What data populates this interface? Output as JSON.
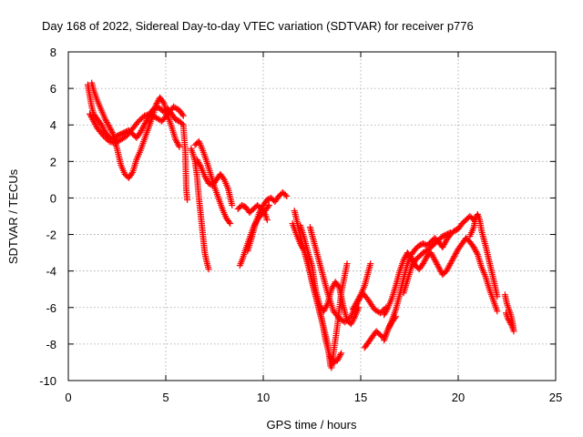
{
  "chart_data": {
    "type": "scatter",
    "title": "Day 168 of 2022, Sidereal Day-to-day VTEC variation (SDTVAR) for receiver p776",
    "xlabel": "GPS time / hours",
    "ylabel": "SDTVAR / TECUs",
    "xlim": [
      0,
      25
    ],
    "ylim": [
      -10,
      8
    ],
    "xticks": [
      0,
      5,
      10,
      15,
      20,
      25
    ],
    "yticks": [
      -10,
      -8,
      -6,
      -4,
      -2,
      0,
      2,
      4,
      6,
      8
    ],
    "grid": true,
    "marker": "+",
    "color": "#ff0000",
    "series": [
      {
        "points": [
          [
            1.0,
            6.2
          ],
          [
            1.1,
            5.6
          ],
          [
            1.2,
            5.0
          ],
          [
            1.3,
            4.6
          ],
          [
            1.5,
            4.3
          ],
          [
            1.7,
            4.0
          ],
          [
            1.9,
            3.6
          ],
          [
            2.1,
            3.3
          ],
          [
            2.3,
            3.2
          ],
          [
            2.5,
            3.4
          ],
          [
            2.7,
            3.5
          ],
          [
            2.9,
            3.6
          ],
          [
            3.1,
            3.7
          ],
          [
            3.3,
            3.5
          ],
          [
            3.5,
            3.3
          ],
          [
            3.7,
            3.6
          ],
          [
            3.9,
            4.0
          ],
          [
            4.1,
            4.4
          ],
          [
            4.3,
            4.8
          ],
          [
            4.5,
            5.0
          ],
          [
            4.7,
            4.9
          ],
          [
            4.9,
            4.7
          ],
          [
            5.1,
            4.9
          ],
          [
            5.3,
            4.6
          ],
          [
            5.5,
            4.3
          ],
          [
            5.7,
            4.2
          ],
          [
            5.9,
            4.0
          ],
          [
            6.0,
            2.5
          ],
          [
            6.05,
            0.5
          ],
          [
            6.1,
            -0.1
          ]
        ]
      },
      {
        "points": [
          [
            1.2,
            6.3
          ],
          [
            1.3,
            5.9
          ],
          [
            1.5,
            5.3
          ],
          [
            1.7,
            4.8
          ],
          [
            1.9,
            4.3
          ],
          [
            2.1,
            3.9
          ],
          [
            2.3,
            3.5
          ],
          [
            2.5,
            2.7
          ],
          [
            2.7,
            1.8
          ],
          [
            2.9,
            1.3
          ],
          [
            3.1,
            1.1
          ],
          [
            3.3,
            1.4
          ],
          [
            3.5,
            2.1
          ],
          [
            3.7,
            2.6
          ],
          [
            3.9,
            3.2
          ],
          [
            4.1,
            3.8
          ],
          [
            4.3,
            4.4
          ],
          [
            4.5,
            5.1
          ],
          [
            4.7,
            5.5
          ],
          [
            4.9,
            5.2
          ],
          [
            5.1,
            4.5
          ],
          [
            5.3,
            3.9
          ],
          [
            5.5,
            3.2
          ],
          [
            5.7,
            2.8
          ]
        ]
      },
      {
        "points": [
          [
            1.1,
            4.6
          ],
          [
            1.3,
            4.2
          ],
          [
            1.5,
            3.8
          ],
          [
            1.8,
            3.4
          ],
          [
            2.1,
            3.1
          ],
          [
            2.4,
            3.0
          ],
          [
            2.7,
            3.2
          ],
          [
            3.0,
            3.4
          ],
          [
            3.3,
            3.8
          ],
          [
            3.6,
            4.2
          ],
          [
            3.9,
            4.5
          ],
          [
            4.2,
            4.6
          ],
          [
            4.5,
            4.4
          ],
          [
            4.8,
            4.2
          ],
          [
            5.1,
            4.6
          ],
          [
            5.4,
            5.0
          ],
          [
            5.7,
            4.8
          ],
          [
            5.9,
            4.5
          ]
        ]
      },
      {
        "points": [
          [
            6.3,
            2.7
          ],
          [
            6.4,
            2.4
          ],
          [
            6.5,
            2.0
          ],
          [
            6.6,
            1.2
          ],
          [
            6.7,
            0.0
          ],
          [
            6.8,
            -1.0
          ],
          [
            6.9,
            -2.0
          ],
          [
            7.0,
            -3.0
          ],
          [
            7.1,
            -3.5
          ],
          [
            7.2,
            -3.9
          ]
        ]
      },
      {
        "points": [
          [
            6.5,
            2.9
          ],
          [
            6.7,
            3.1
          ],
          [
            6.9,
            2.6
          ],
          [
            7.1,
            2.0
          ],
          [
            7.3,
            1.3
          ],
          [
            7.5,
            0.6
          ],
          [
            7.7,
            0.0
          ],
          [
            7.9,
            -0.6
          ],
          [
            8.1,
            -1.1
          ],
          [
            8.3,
            -1.4
          ]
        ]
      },
      {
        "points": [
          [
            6.6,
            2.1
          ],
          [
            6.8,
            1.7
          ],
          [
            7.0,
            1.2
          ],
          [
            7.2,
            0.8
          ],
          [
            7.4,
            0.7
          ],
          [
            7.6,
            1.0
          ],
          [
            7.8,
            1.3
          ],
          [
            8.0,
            1.0
          ],
          [
            8.2,
            0.5
          ],
          [
            8.4,
            -0.4
          ]
        ]
      },
      {
        "points": [
          [
            8.8,
            -3.7
          ],
          [
            8.95,
            -3.3
          ],
          [
            9.1,
            -2.8
          ],
          [
            9.3,
            -2.2
          ],
          [
            9.5,
            -1.6
          ],
          [
            9.7,
            -1.2
          ],
          [
            9.9,
            -0.9
          ],
          [
            10.1,
            -0.7
          ],
          [
            10.3,
            -0.4
          ]
        ]
      },
      {
        "points": [
          [
            8.7,
            -0.6
          ],
          [
            8.9,
            -0.4
          ],
          [
            9.1,
            -0.5
          ],
          [
            9.3,
            -0.8
          ],
          [
            9.5,
            -0.6
          ],
          [
            9.7,
            -0.4
          ],
          [
            9.9,
            -0.6
          ],
          [
            10.1,
            -0.9
          ],
          [
            10.2,
            -1.2
          ]
        ]
      },
      {
        "points": [
          [
            9.2,
            -2.9
          ],
          [
            9.4,
            -2.2
          ],
          [
            9.6,
            -1.4
          ],
          [
            9.8,
            -0.8
          ],
          [
            10.0,
            -0.4
          ],
          [
            10.2,
            -0.1
          ],
          [
            10.4,
            0.0
          ],
          [
            10.6,
            -0.2
          ],
          [
            10.8,
            0.1
          ],
          [
            11.0,
            0.3
          ],
          [
            11.2,
            0.1
          ]
        ]
      },
      {
        "points": [
          [
            11.6,
            -0.7
          ],
          [
            11.8,
            -1.6
          ],
          [
            12.0,
            -2.5
          ],
          [
            12.2,
            -3.3
          ],
          [
            12.4,
            -4.1
          ],
          [
            12.6,
            -5.0
          ],
          [
            12.8,
            -5.8
          ],
          [
            13.0,
            -6.6
          ],
          [
            13.2,
            -7.8
          ],
          [
            13.4,
            -8.6
          ],
          [
            13.6,
            -9.0
          ],
          [
            13.8,
            -8.9
          ],
          [
            14.0,
            -8.5
          ]
        ]
      },
      {
        "points": [
          [
            11.5,
            -1.4
          ],
          [
            11.7,
            -2.0
          ],
          [
            11.9,
            -2.5
          ],
          [
            12.1,
            -2.9
          ],
          [
            12.3,
            -3.5
          ],
          [
            12.5,
            -4.6
          ],
          [
            12.7,
            -5.4
          ],
          [
            12.9,
            -6.3
          ],
          [
            13.1,
            -7.1
          ],
          [
            13.3,
            -8.0
          ],
          [
            13.45,
            -9.2
          ]
        ]
      },
      {
        "points": [
          [
            11.9,
            -1.5
          ],
          [
            12.1,
            -2.2
          ],
          [
            12.3,
            -3.0
          ],
          [
            12.5,
            -3.7
          ],
          [
            12.6,
            -4.4
          ],
          [
            12.7,
            -5.1
          ],
          [
            12.9,
            -5.9
          ],
          [
            13.1,
            -6.2
          ],
          [
            13.3,
            -5.8
          ],
          [
            13.5,
            -5.0
          ],
          [
            13.7,
            -4.6
          ],
          [
            13.9,
            -4.9
          ],
          [
            14.1,
            -5.9
          ],
          [
            14.3,
            -6.7
          ],
          [
            14.5,
            -6.9
          ],
          [
            14.7,
            -6.5
          ],
          [
            14.9,
            -6.0
          ]
        ]
      },
      {
        "points": [
          [
            12.4,
            -1.6
          ],
          [
            12.7,
            -2.8
          ],
          [
            13.0,
            -4.0
          ],
          [
            13.3,
            -5.2
          ],
          [
            13.6,
            -6.2
          ],
          [
            13.9,
            -6.6
          ],
          [
            14.2,
            -6.8
          ],
          [
            14.5,
            -6.5
          ],
          [
            14.8,
            -5.8
          ],
          [
            15.1,
            -5.2
          ],
          [
            15.4,
            -5.6
          ],
          [
            15.7,
            -6.1
          ],
          [
            16.0,
            -6.3
          ],
          [
            16.3,
            -6.0
          ]
        ]
      },
      {
        "points": [
          [
            14.3,
            -3.6
          ],
          [
            14.0,
            -5.2
          ],
          [
            13.8,
            -7.0
          ],
          [
            13.6,
            -8.5
          ],
          [
            13.5,
            -9.3
          ]
        ]
      },
      {
        "points": [
          [
            14.6,
            -6.1
          ],
          [
            14.8,
            -5.7
          ],
          [
            15.0,
            -5.3
          ],
          [
            15.2,
            -4.8
          ],
          [
            15.35,
            -4.2
          ],
          [
            15.5,
            -3.6
          ]
        ]
      },
      {
        "points": [
          [
            15.2,
            -8.2
          ],
          [
            15.4,
            -7.9
          ],
          [
            15.6,
            -7.6
          ],
          [
            15.8,
            -7.3
          ],
          [
            16.0,
            -7.5
          ],
          [
            16.2,
            -7.7
          ],
          [
            16.4,
            -7.2
          ],
          [
            16.6,
            -6.7
          ],
          [
            16.8,
            -6.1
          ],
          [
            17.0,
            -5.3
          ],
          [
            17.2,
            -4.4
          ],
          [
            17.4,
            -3.6
          ],
          [
            17.6,
            -3.1
          ],
          [
            17.8,
            -2.8
          ],
          [
            18.0,
            -2.6
          ],
          [
            18.2,
            -2.5
          ],
          [
            18.4,
            -2.6
          ],
          [
            18.6,
            -2.4
          ],
          [
            18.8,
            -2.2
          ],
          [
            19.0,
            -2.4
          ],
          [
            19.2,
            -2.7
          ],
          [
            19.4,
            -2.3
          ],
          [
            19.6,
            -2.0
          ],
          [
            19.8,
            -1.8
          ],
          [
            20.0,
            -1.7
          ],
          [
            20.2,
            -1.4
          ],
          [
            20.4,
            -1.2
          ],
          [
            20.6,
            -1.0
          ],
          [
            20.8,
            -1.2
          ]
        ]
      },
      {
        "points": [
          [
            16.2,
            -6.4
          ],
          [
            16.4,
            -6.0
          ],
          [
            16.6,
            -5.5
          ],
          [
            16.8,
            -4.8
          ],
          [
            17.0,
            -4.0
          ],
          [
            17.2,
            -3.4
          ],
          [
            17.4,
            -3.0
          ],
          [
            17.6,
            -3.3
          ],
          [
            17.8,
            -3.7
          ],
          [
            18.0,
            -3.9
          ],
          [
            18.2,
            -3.6
          ],
          [
            18.4,
            -3.2
          ],
          [
            18.6,
            -3.0
          ],
          [
            18.8,
            -3.4
          ],
          [
            19.0,
            -3.8
          ],
          [
            19.2,
            -4.2
          ],
          [
            19.4,
            -4.0
          ],
          [
            19.6,
            -3.6
          ],
          [
            19.8,
            -3.2
          ],
          [
            20.0,
            -2.8
          ],
          [
            20.2,
            -2.5
          ],
          [
            20.4,
            -2.2
          ],
          [
            20.6,
            -2.4
          ],
          [
            20.8,
            -2.7
          ],
          [
            21.0,
            -3.1
          ],
          [
            21.2,
            -3.8
          ],
          [
            21.4,
            -4.3
          ],
          [
            21.6,
            -5.0
          ],
          [
            21.8,
            -5.6
          ],
          [
            22.0,
            -6.2
          ]
        ]
      },
      {
        "points": [
          [
            17.2,
            -5.2
          ],
          [
            17.4,
            -4.5
          ],
          [
            17.6,
            -3.8
          ],
          [
            17.8,
            -3.4
          ],
          [
            18.0,
            -3.2
          ],
          [
            18.2,
            -3.0
          ],
          [
            18.4,
            -2.9
          ],
          [
            18.6,
            -2.7
          ],
          [
            18.8,
            -2.5
          ],
          [
            19.0,
            -2.3
          ],
          [
            19.2,
            -2.1
          ],
          [
            19.4,
            -2.0
          ],
          [
            19.6,
            -1.9
          ]
        ]
      },
      {
        "points": [
          [
            20.6,
            -2.1
          ],
          [
            20.8,
            -1.6
          ],
          [
            20.9,
            -1.1
          ],
          [
            21.0,
            -0.9
          ],
          [
            21.1,
            -1.2
          ],
          [
            21.2,
            -1.8
          ],
          [
            21.4,
            -2.6
          ],
          [
            21.6,
            -3.5
          ],
          [
            21.8,
            -4.4
          ],
          [
            22.0,
            -5.4
          ]
        ]
      },
      {
        "points": [
          [
            22.4,
            -5.3
          ],
          [
            22.5,
            -5.8
          ],
          [
            22.6,
            -6.1
          ],
          [
            22.7,
            -6.4
          ],
          [
            22.8,
            -6.9
          ],
          [
            22.85,
            -7.3
          ],
          [
            22.75,
            -7.0
          ],
          [
            22.55,
            -6.6
          ],
          [
            22.45,
            -6.3
          ]
        ]
      },
      {
        "points": [
          [
            16.8,
            -6.5
          ],
          [
            16.6,
            -6.8
          ],
          [
            16.4,
            -7.2
          ],
          [
            16.2,
            -7.8
          ]
        ]
      }
    ]
  }
}
